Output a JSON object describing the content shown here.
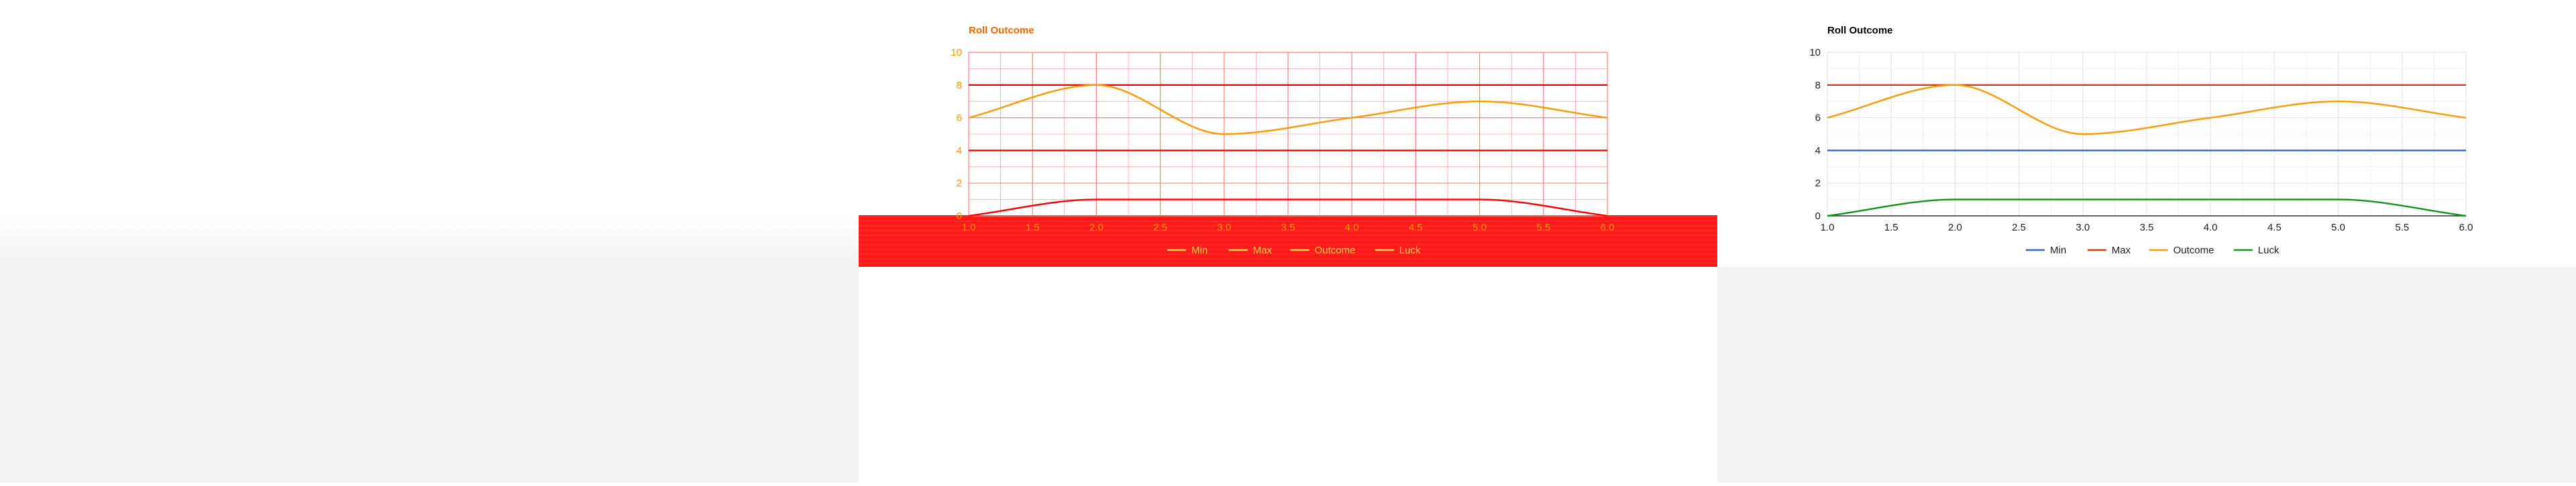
{
  "chart_data": [
    {
      "type": "line",
      "title": "Roll Outcome",
      "x": [
        1.0,
        1.5,
        2.0,
        2.5,
        3.0,
        3.5,
        4.0,
        4.5,
        5.0,
        5.5,
        6.0
      ],
      "x_tick_labels": [
        "1.0",
        "1.5",
        "2.0",
        "2.5",
        "3.0",
        "3.5",
        "4.0",
        "4.5",
        "5.0",
        "5.5",
        "6.0"
      ],
      "y_ticks": [
        0,
        2,
        4,
        6,
        8,
        10
      ],
      "xlim": [
        1,
        6
      ],
      "ylim": [
        0,
        10
      ],
      "grid": true,
      "legend_position": "bottom",
      "series": [
        {
          "name": "Min",
          "color": "#ff0000",
          "points": [
            [
              1,
              4
            ],
            [
              2,
              4
            ],
            [
              3,
              4
            ],
            [
              4,
              4
            ],
            [
              5,
              4
            ],
            [
              6,
              4
            ]
          ]
        },
        {
          "name": "Max",
          "color": "#ff0000",
          "points": [
            [
              1,
              8
            ],
            [
              2,
              8
            ],
            [
              3,
              8
            ],
            [
              4,
              8
            ],
            [
              5,
              8
            ],
            [
              6,
              8
            ]
          ]
        },
        {
          "name": "Outcome",
          "color": "#ff9900",
          "points": [
            [
              1,
              6
            ],
            [
              2,
              8
            ],
            [
              3,
              5
            ],
            [
              4,
              6
            ],
            [
              5,
              7
            ],
            [
              6,
              6
            ]
          ]
        },
        {
          "name": "Luck",
          "color": "#ff0000",
          "points": [
            [
              1,
              0
            ],
            [
              2,
              1
            ],
            [
              3,
              1
            ],
            [
              4,
              1
            ],
            [
              5,
              1
            ],
            [
              6,
              0
            ]
          ]
        }
      ],
      "colors": {
        "grid": "#ff8080",
        "axis": "#ff6666",
        "text": "#ff9900",
        "title": "#ff6600",
        "legend_band": "#ff1a1a",
        "legend_text": "#ffd24d"
      }
    },
    {
      "type": "line",
      "title": "Roll Outcome",
      "x": [
        1.0,
        1.5,
        2.0,
        2.5,
        3.0,
        3.5,
        4.0,
        4.5,
        5.0,
        5.5,
        6.0
      ],
      "x_tick_labels": [
        "1.0",
        "1.5",
        "2.0",
        "2.5",
        "3.0",
        "3.5",
        "4.0",
        "4.5",
        "5.0",
        "5.5",
        "6.0"
      ],
      "y_ticks": [
        0,
        2,
        4,
        6,
        8,
        10
      ],
      "xlim": [
        1,
        6
      ],
      "ylim": [
        0,
        10
      ],
      "grid": true,
      "legend_position": "bottom",
      "series": [
        {
          "name": "Min",
          "color": "#3366cc",
          "points": [
            [
              1,
              4
            ],
            [
              2,
              4
            ],
            [
              3,
              4
            ],
            [
              4,
              4
            ],
            [
              5,
              4
            ],
            [
              6,
              4
            ]
          ]
        },
        {
          "name": "Max",
          "color": "#dc3912",
          "points": [
            [
              1,
              8
            ],
            [
              2,
              8
            ],
            [
              3,
              8
            ],
            [
              4,
              8
            ],
            [
              5,
              8
            ],
            [
              6,
              8
            ]
          ]
        },
        {
          "name": "Outcome",
          "color": "#ff9900",
          "points": [
            [
              1,
              6
            ],
            [
              2,
              8
            ],
            [
              3,
              5
            ],
            [
              4,
              6
            ],
            [
              5,
              7
            ],
            [
              6,
              6
            ]
          ]
        },
        {
          "name": "Luck",
          "color": "#109618",
          "points": [
            [
              1,
              0
            ],
            [
              2,
              1
            ],
            [
              3,
              1
            ],
            [
              4,
              1
            ],
            [
              5,
              1
            ],
            [
              6,
              0
            ]
          ]
        }
      ],
      "colors": {
        "grid": "#e6e6e6",
        "axis": "#333333",
        "text": "#222222",
        "title": "#000000",
        "legend_band": "",
        "legend_text": "#222222"
      }
    }
  ]
}
